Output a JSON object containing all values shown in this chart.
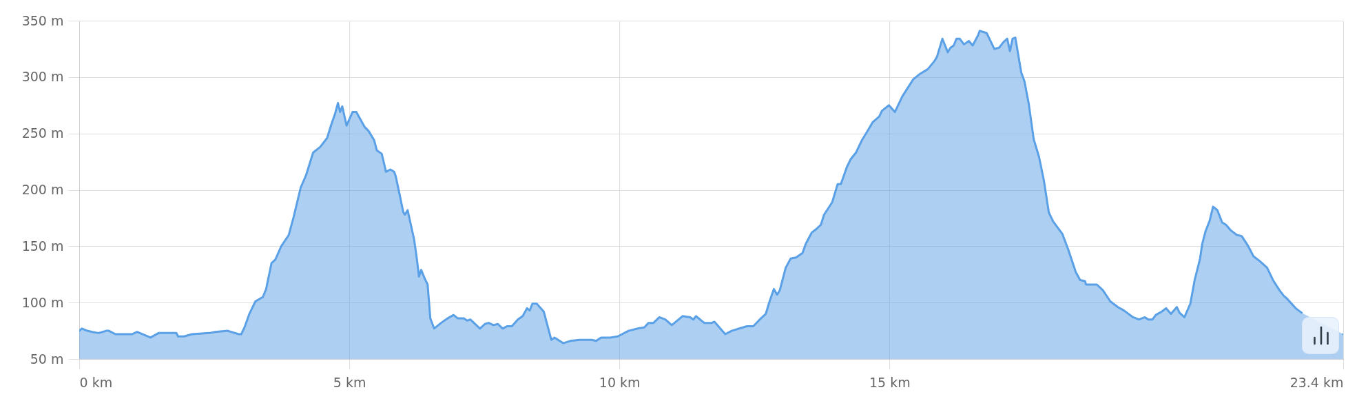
{
  "chart_data": {
    "type": "area",
    "color": "#5aa0e6",
    "x": [
      0,
      0.05,
      0.15,
      0.24,
      0.36,
      0.5,
      0.55,
      0.67,
      0.98,
      1.07,
      1.32,
      1.47,
      1.8,
      1.83,
      1.94,
      2.09,
      2.41,
      2.52,
      2.75,
      2.95,
      3.0,
      3.06,
      3.15,
      3.26,
      3.4,
      3.46,
      3.56,
      3.63,
      3.74,
      3.88,
      3.97,
      4.1,
      4.2,
      4.33,
      4.46,
      4.59,
      4.66,
      4.74,
      4.79,
      4.83,
      4.87,
      4.95,
      5.06,
      5.13,
      5.28,
      5.36,
      5.46,
      5.51,
      5.6,
      5.68,
      5.76,
      5.83,
      5.86,
      5.94,
      6.0,
      6.03,
      6.08,
      6.2,
      6.25,
      6.29,
      6.33,
      6.4,
      6.45,
      6.5,
      6.57,
      6.7,
      6.82,
      6.93,
      7.01,
      7.12,
      7.18,
      7.24,
      7.42,
      7.51,
      7.58,
      7.67,
      7.75,
      7.84,
      7.92,
      8.01,
      8.12,
      8.21,
      8.29,
      8.34,
      8.39,
      8.47,
      8.6,
      8.74,
      8.8,
      8.96,
      9.09,
      9.26,
      9.49,
      9.57,
      9.66,
      9.83,
      9.97,
      10.17,
      10.34,
      10.46,
      10.54,
      10.63,
      10.74,
      10.85,
      10.97,
      11.17,
      11.31,
      11.37,
      11.42,
      11.57,
      11.71,
      11.76,
      11.96,
      12.08,
      12.22,
      12.36,
      12.48,
      12.62,
      12.71,
      12.78,
      12.86,
      12.92,
      12.97,
      13.08,
      13.17,
      13.27,
      13.39,
      13.45,
      13.56,
      13.64,
      13.73,
      13.79,
      13.94,
      14.04,
      14.1,
      14.21,
      14.28,
      14.38,
      14.49,
      14.58,
      14.69,
      14.81,
      14.86,
      14.99,
      15.1,
      15.24,
      15.44,
      15.57,
      15.71,
      15.83,
      15.88,
      15.98,
      16.08,
      16.13,
      16.19,
      16.24,
      16.3,
      16.38,
      16.47,
      16.54,
      16.64,
      16.67,
      16.8,
      16.87,
      16.94,
      17.03,
      17.11,
      17.18,
      17.23,
      17.28,
      17.33,
      17.44,
      17.5,
      17.58,
      17.67,
      17.77,
      17.86,
      17.95,
      18.03,
      18.2,
      18.31,
      18.45,
      18.53,
      18.62,
      18.64,
      18.84,
      18.95,
      19.09,
      19.23,
      19.34,
      19.51,
      19.62,
      19.73,
      19.79,
      19.87,
      19.93,
      20.04,
      20.12,
      20.21,
      20.32,
      20.37,
      20.46,
      20.57,
      20.65,
      20.75,
      20.79,
      20.85,
      20.93,
      20.99,
      21.07,
      21.16,
      21.23,
      21.32,
      21.43,
      21.52,
      21.63,
      21.74,
      21.85,
      21.99,
      22.1,
      22.22,
      22.3,
      22.35,
      22.52,
      22.63,
      22.75,
      22.97,
      23.19,
      23.4
    ],
    "values": [
      75,
      77,
      75,
      74,
      73,
      75,
      75,
      72,
      72,
      74,
      69,
      73,
      73,
      70,
      70,
      72,
      73,
      74,
      75,
      72,
      72,
      78,
      90,
      101,
      105,
      112,
      135,
      138,
      150,
      160,
      176,
      202,
      213,
      233,
      238,
      246,
      257,
      268,
      277,
      269,
      274,
      257,
      269,
      269,
      256,
      252,
      244,
      235,
      232,
      216,
      218,
      216,
      212,
      194,
      180,
      178,
      182,
      156,
      139,
      123,
      129,
      121,
      116,
      86,
      77,
      82,
      86,
      89,
      86,
      86,
      84,
      85,
      77,
      81,
      82,
      80,
      81,
      77,
      79,
      79,
      85,
      88,
      95,
      93,
      99,
      99,
      92,
      67,
      69,
      64,
      66,
      67,
      67,
      66,
      69,
      69,
      70,
      75,
      77,
      78,
      82,
      82,
      87,
      85,
      80,
      88,
      87,
      85,
      88,
      82,
      82,
      83,
      72,
      75,
      77,
      79,
      79,
      86,
      90,
      101,
      112,
      107,
      111,
      131,
      139,
      140,
      144,
      152,
      162,
      165,
      169,
      178,
      189,
      205,
      205,
      220,
      227,
      233,
      244,
      251,
      260,
      265,
      270,
      275,
      269,
      283,
      298,
      303,
      307,
      314,
      318,
      334,
      322,
      326,
      328,
      334,
      334,
      329,
      332,
      328,
      337,
      341,
      339,
      332,
      325,
      326,
      331,
      334,
      323,
      334,
      335,
      304,
      296,
      276,
      245,
      229,
      208,
      180,
      172,
      161,
      147,
      127,
      120,
      119,
      116,
      116,
      111,
      101,
      96,
      93,
      87,
      85,
      87,
      85,
      85,
      89,
      92,
      95,
      90,
      96,
      91,
      87,
      99,
      120,
      139,
      152,
      163,
      173,
      185,
      182,
      171,
      169,
      164,
      160,
      159,
      151,
      141,
      137,
      131,
      120,
      111,
      106,
      104,
      95,
      91,
      null,
      null,
      null,
      72
    ],
    "xlim": [
      0,
      23.4
    ],
    "xticks": [
      {
        "value": 0,
        "label": "0 km"
      },
      {
        "value": 5,
        "label": "5 km"
      },
      {
        "value": 10,
        "label": "10 km"
      },
      {
        "value": 15,
        "label": "15 km"
      },
      {
        "value": 23.4,
        "label": "23.4 km"
      }
    ],
    "ylim": [
      50,
      350
    ],
    "yticks": [
      {
        "value": 50,
        "label": "50 m"
      },
      {
        "value": 100,
        "label": "100 m"
      },
      {
        "value": 150,
        "label": "150 m"
      },
      {
        "value": 200,
        "label": "200 m"
      },
      {
        "value": 250,
        "label": "250 m"
      },
      {
        "value": 300,
        "label": "300 m"
      },
      {
        "value": 350,
        "label": "350 m"
      }
    ],
    "grid": true
  }
}
